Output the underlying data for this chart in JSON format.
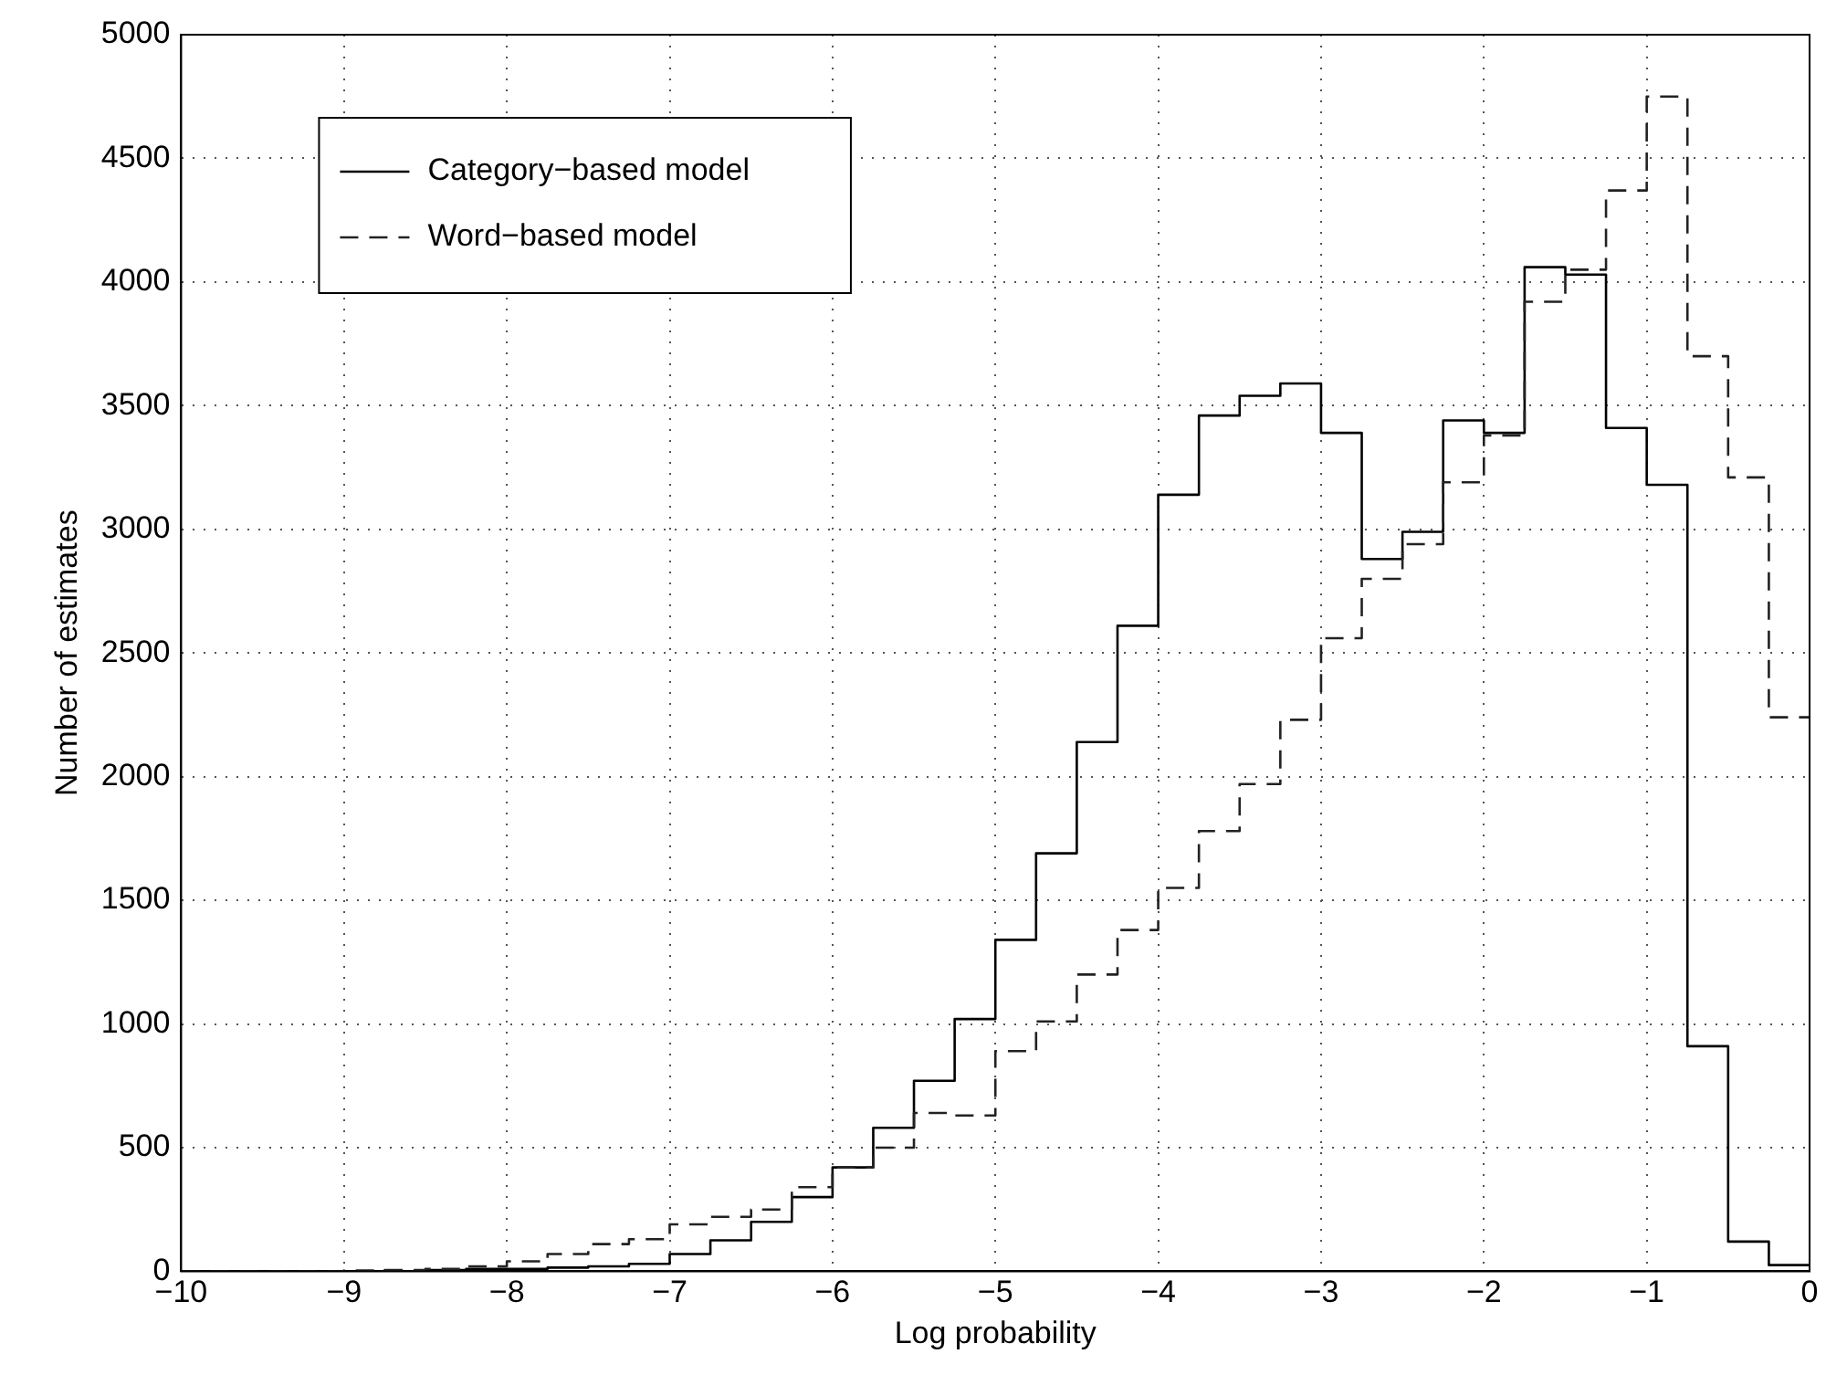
{
  "chart_data": {
    "type": "histogram",
    "xlabel": "Log probability",
    "ylabel": "Number of estimates",
    "bins": [
      -10,
      -9.75,
      -9.5,
      -9.25,
      -9,
      -8.75,
      -8.5,
      -8.25,
      -8,
      -7.75,
      -7.5,
      -7.25,
      -7,
      -6.75,
      -6.5,
      -6.25,
      -6,
      -5.75,
      -5.5,
      -5.25,
      -5,
      -4.75,
      -4.5,
      -4.25,
      -4,
      -3.75,
      -3.5,
      -3.25,
      -3,
      -2.75,
      -2.5,
      -2.25,
      -2,
      -1.75,
      -1.5,
      -1.25,
      -1,
      -0.75,
      -0.5,
      -0.25,
      0
    ],
    "series": [
      {
        "name": "Category−based model",
        "color": "#000000",
        "line_style": "solid",
        "values": [
          0,
          0,
          0,
          0,
          0,
          0,
          5,
          10,
          10,
          15,
          20,
          30,
          70,
          125,
          200,
          300,
          420,
          580,
          770,
          1020,
          1340,
          1690,
          2140,
          2610,
          3140,
          3460,
          3540,
          3590,
          3390,
          2880,
          2990,
          3440,
          3390,
          4060,
          4030,
          3410,
          3180,
          910,
          120,
          25
        ]
      },
      {
        "name": "Word−based model",
        "color": "#222222",
        "line_style": "dashed",
        "values": [
          0,
          0,
          0,
          0,
          3,
          5,
          10,
          20,
          40,
          70,
          110,
          130,
          190,
          220,
          250,
          340,
          420,
          500,
          640,
          630,
          890,
          1010,
          1200,
          1380,
          1550,
          1780,
          1970,
          2230,
          2560,
          2800,
          2940,
          3190,
          3380,
          3920,
          4050,
          4370,
          4750,
          3700,
          3210,
          2240
        ]
      }
    ],
    "xlim": [
      -10,
      0
    ],
    "xticks": [
      -10,
      -9,
      -8,
      -7,
      -6,
      -5,
      -4,
      -3,
      -2,
      -1,
      0
    ],
    "ylim": [
      0,
      5000
    ],
    "yticks": [
      0,
      500,
      1000,
      1500,
      2000,
      2500,
      3000,
      3500,
      4000,
      4500,
      5000
    ],
    "grid": true,
    "legend": "top left"
  }
}
